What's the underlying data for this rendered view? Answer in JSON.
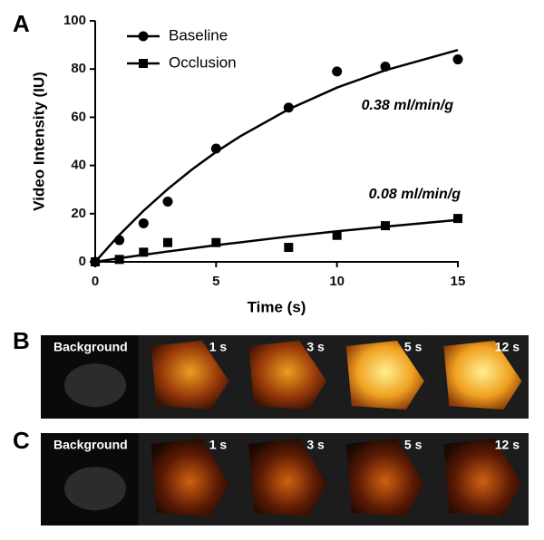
{
  "chart_data": {
    "type": "scatter",
    "x_label": "Time (s)",
    "y_label": "Video Intensity (IU)",
    "xlim": [
      0,
      15
    ],
    "ylim": [
      0,
      100
    ],
    "xticks": [
      0,
      5,
      10,
      15
    ],
    "yticks": [
      0,
      20,
      40,
      60,
      80,
      100
    ],
    "grid": false,
    "legend": "upper left",
    "series": [
      {
        "name": "Baseline",
        "color": "#000000",
        "marker": "circle",
        "x": [
          0,
          1,
          2,
          3,
          5,
          8,
          10,
          12,
          15
        ],
        "values": [
          0,
          9,
          16,
          25,
          47,
          64,
          79,
          81,
          84
        ]
      },
      {
        "name": "Occlusion",
        "color": "#000000",
        "marker": "square",
        "x": [
          0,
          1,
          2,
          3,
          5,
          8,
          10,
          12,
          15
        ],
        "values": [
          0,
          1,
          4,
          8,
          8,
          6,
          11,
          15,
          18
        ]
      }
    ],
    "fits": [
      {
        "x": [
          0,
          1,
          2,
          3,
          4,
          5,
          6,
          8,
          10,
          12,
          15
        ],
        "values": [
          0,
          11.2,
          21.2,
          30.2,
          38.3,
          45.6,
          52.1,
          63.3,
          72.3,
          79.5,
          87.9
        ]
      },
      {
        "x": [
          0,
          1,
          2,
          3,
          4,
          5,
          6,
          8,
          10,
          12,
          15
        ],
        "values": [
          0,
          1.5,
          2.9,
          4.3,
          5.6,
          6.9,
          8.1,
          10.5,
          12.7,
          14.6,
          17.4
        ]
      }
    ],
    "annotations": [
      "0.38 ml/min/g",
      "0.08 ml/min/g"
    ]
  },
  "panel_labels": [
    "A",
    "B",
    "C"
  ],
  "image_rows": [
    {
      "frames": [
        "Background",
        "1 s",
        "3 s",
        "5 s",
        "12 s"
      ]
    },
    {
      "frames": [
        "Background",
        "1 s",
        "3 s",
        "5 s",
        "12 s"
      ]
    }
  ]
}
